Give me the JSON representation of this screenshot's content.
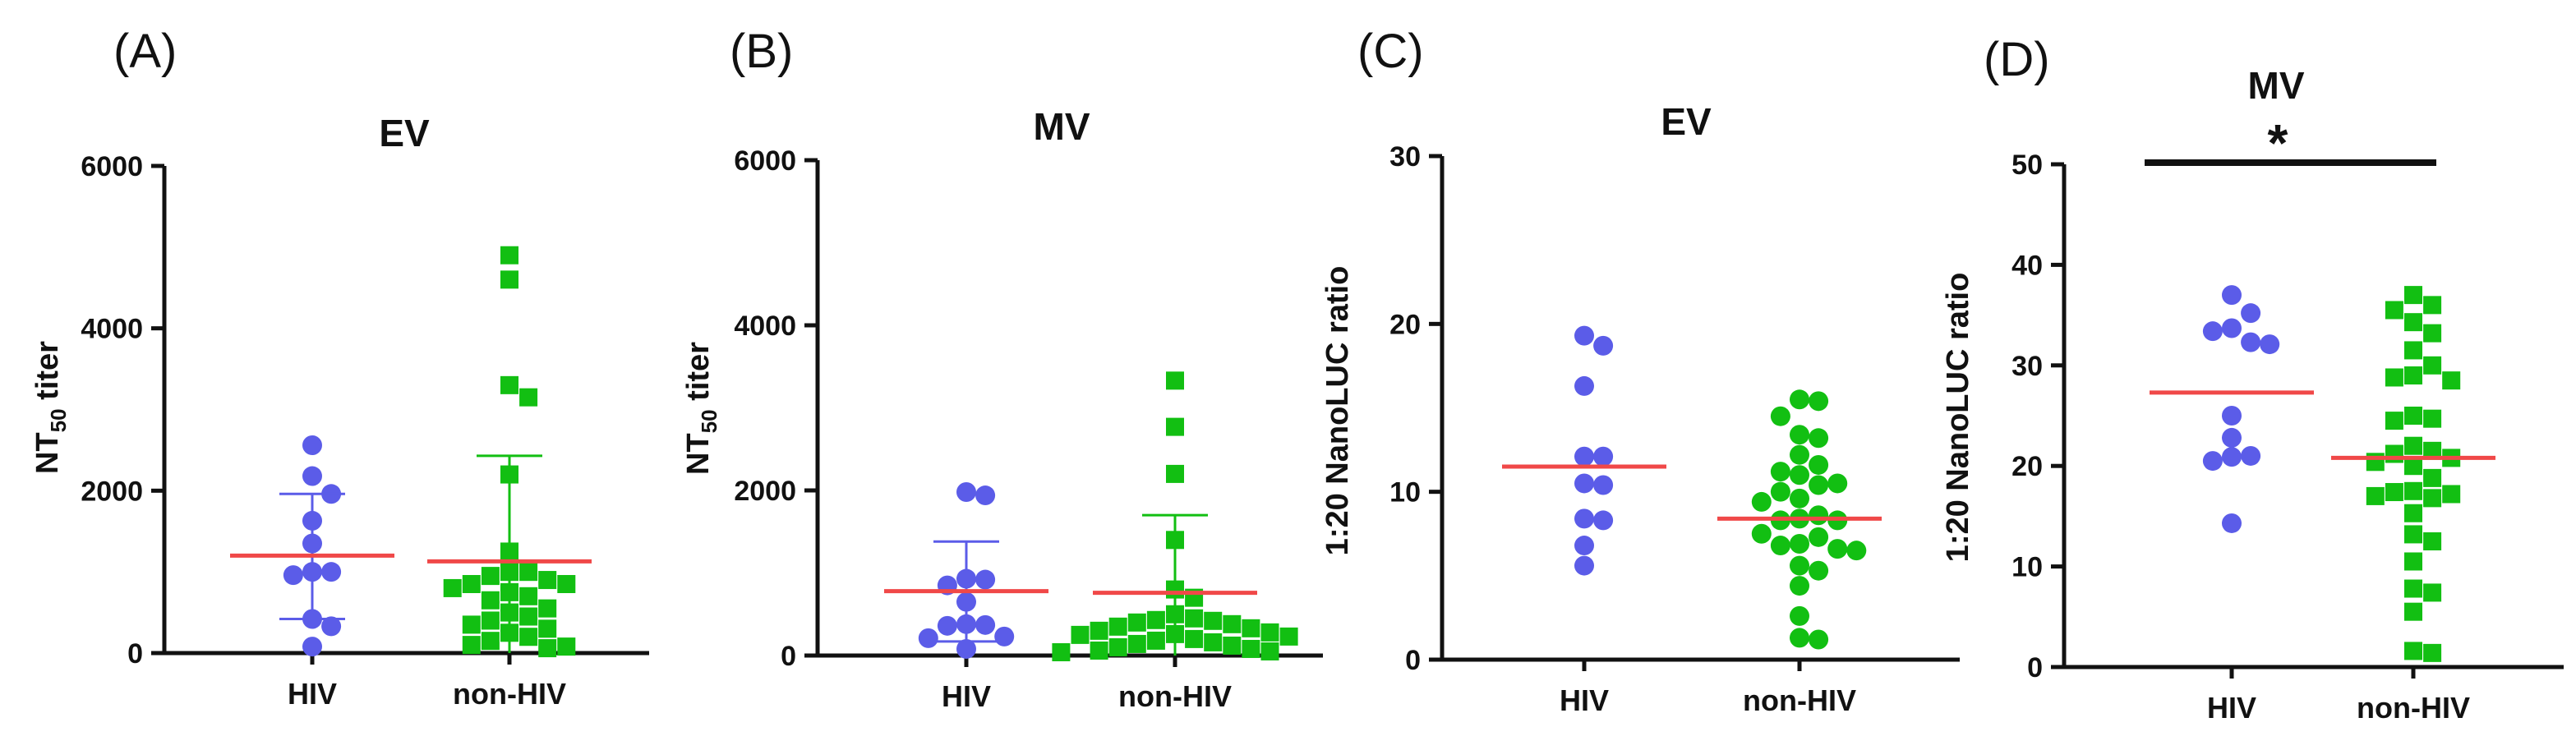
{
  "colors": {
    "hiv": "#5b5ce8",
    "non_hiv": "#12bf12",
    "mean_line": "#f04848",
    "error_hiv": "#5b5ce8",
    "error_non_hiv": "#12bf12",
    "axis": "#111111"
  },
  "chart_data": [
    {
      "type": "scatter",
      "panel_label": "(A)",
      "title": "EV",
      "ylabel": "NT",
      "ylabel_sub": "50",
      "ylabel_suffix": " titer",
      "ylim": [
        0,
        6000
      ],
      "yticks": [
        0,
        2000,
        4000,
        6000
      ],
      "categories": [
        "HIV",
        "non-HIV"
      ],
      "series": [
        {
          "name": "HIV",
          "marker": "circle",
          "values": [
            2560,
            2180,
            1960,
            1630,
            1350,
            1000,
            1000,
            960,
            420,
            330,
            80
          ],
          "mean": 1200,
          "sd_low": 420,
          "sd_high": 1960
        },
        {
          "name": "non-HIV",
          "marker": "square",
          "values": [
            4900,
            4600,
            3300,
            3150,
            2200,
            1250,
            1000,
            1000,
            950,
            900,
            850,
            850,
            800,
            750,
            700,
            650,
            550,
            500,
            450,
            400,
            350,
            300,
            250,
            200,
            150,
            100,
            80,
            60
          ],
          "mean": 1130,
          "sd_low": 0,
          "sd_high": 2430
        }
      ]
    },
    {
      "type": "scatter",
      "panel_label": "(B)",
      "title": "MV",
      "ylabel": "NT",
      "ylabel_sub": "50",
      "ylabel_suffix": " titer",
      "ylim": [
        0,
        6000
      ],
      "yticks": [
        0,
        2000,
        4000,
        6000
      ],
      "categories": [
        "HIV",
        "non-HIV"
      ],
      "series": [
        {
          "name": "HIV",
          "marker": "circle",
          "values": [
            1980,
            1940,
            930,
            920,
            850,
            650,
            380,
            370,
            360,
            230,
            210,
            80
          ],
          "mean": 780,
          "sd_low": 170,
          "sd_high": 1380
        },
        {
          "name": "non-HIV",
          "marker": "square",
          "values": [
            3330,
            2770,
            2200,
            1400,
            800,
            700,
            500,
            450,
            430,
            420,
            400,
            380,
            350,
            330,
            300,
            280,
            260,
            250,
            230,
            200,
            180,
            160,
            140,
            120,
            100,
            80,
            60,
            50,
            40
          ],
          "mean": 760,
          "sd_low": 0,
          "sd_high": 1700
        }
      ]
    },
    {
      "type": "scatter",
      "panel_label": "(C)",
      "title": "EV",
      "ylabel": "1:20 NanoLUC ratio",
      "ylim": [
        0,
        30
      ],
      "yticks": [
        0,
        10,
        20,
        30
      ],
      "categories": [
        "HIV",
        "non-HIV"
      ],
      "series": [
        {
          "name": "HIV",
          "marker": "circle",
          "values": [
            19.3,
            18.7,
            16.3,
            12.1,
            12.1,
            10.5,
            10.4,
            8.4,
            8.3,
            6.8,
            5.6
          ],
          "mean": 11.5
        },
        {
          "name": "non-HIV",
          "marker": "circle",
          "values": [
            15.5,
            15.4,
            14.5,
            13.4,
            13.2,
            12.2,
            11.6,
            11.2,
            11.0,
            10.5,
            10.4,
            10.0,
            9.6,
            9.4,
            8.6,
            8.4,
            8.3,
            8.3,
            7.5,
            7.3,
            6.9,
            6.8,
            6.6,
            6.5,
            5.6,
            5.3,
            4.4,
            2.6,
            1.3,
            1.2
          ],
          "mean": 8.4
        }
      ]
    },
    {
      "type": "scatter",
      "panel_label": "(D)",
      "title": "MV",
      "ylabel": "1:20 NanoLUC ratio",
      "ylim": [
        0,
        50
      ],
      "yticks": [
        0,
        10,
        20,
        30,
        40,
        50
      ],
      "categories": [
        "HIV",
        "non-HIV"
      ],
      "significance": "*",
      "series": [
        {
          "name": "HIV",
          "marker": "circle",
          "values": [
            37.0,
            35.2,
            33.7,
            33.4,
            32.3,
            32.1,
            25.0,
            22.8,
            21.0,
            20.9,
            20.5,
            14.3
          ],
          "mean": 27.3
        },
        {
          "name": "non-HIV",
          "marker": "square",
          "values": [
            37.0,
            36.0,
            35.5,
            34.3,
            33.2,
            31.5,
            30.0,
            29.0,
            28.8,
            28.5,
            25.0,
            24.7,
            24.5,
            22.0,
            21.5,
            21.2,
            20.8,
            20.4,
            20.0,
            18.8,
            17.5,
            17.4,
            17.2,
            17.0,
            16.8,
            15.3,
            13.2,
            12.5,
            10.5,
            7.8,
            7.4,
            5.5,
            1.6,
            1.4
          ],
          "mean": 20.8
        }
      ]
    }
  ]
}
